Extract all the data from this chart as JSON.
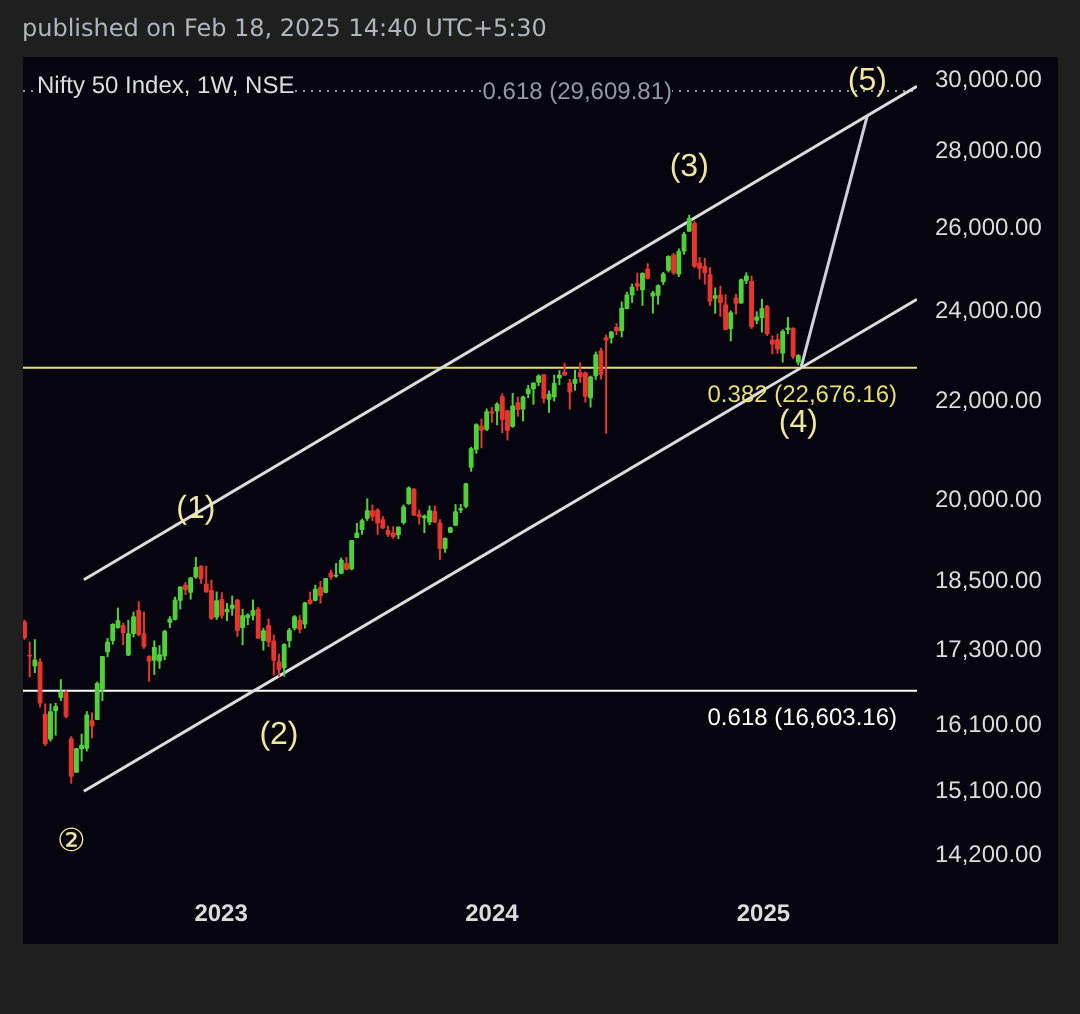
{
  "chart_data": {
    "type": "candlestick",
    "title": "Nifty 50 Index, 1W, NSE",
    "log": "y",
    "grid": false,
    "xlim": [
      "2022-04-09",
      "2025-07-27"
    ],
    "ylim": [
      13740,
      30600
    ],
    "xticks": [
      "2023",
      "2024",
      "2025"
    ],
    "yticks": [
      {
        "value": 30000,
        "label": "30,000.00"
      },
      {
        "value": 28000,
        "label": "28,000.00"
      },
      {
        "value": 26000,
        "label": "26,000.00"
      },
      {
        "value": 24000,
        "label": "24,000.00"
      },
      {
        "value": 22000,
        "label": "22,000.00"
      },
      {
        "value": 20000,
        "label": "20,000.00"
      },
      {
        "value": 18500,
        "label": "18,500.00"
      },
      {
        "value": 17300,
        "label": "17,300.00"
      },
      {
        "value": 16100,
        "label": "16,100.00"
      },
      {
        "value": 15100,
        "label": "15,100.00"
      },
      {
        "value": 14200,
        "label": "14,200.00"
      }
    ],
    "x": [
      "2022-04-11",
      "2022-04-18",
      "2022-04-25",
      "2022-05-02",
      "2022-05-09",
      "2022-05-16",
      "2022-05-23",
      "2022-05-30",
      "2022-06-06",
      "2022-06-13",
      "2022-06-20",
      "2022-06-27",
      "2022-07-04",
      "2022-07-11",
      "2022-07-18",
      "2022-07-25",
      "2022-08-01",
      "2022-08-08",
      "2022-08-15",
      "2022-08-22",
      "2022-08-29",
      "2022-09-05",
      "2022-09-12",
      "2022-09-19",
      "2022-09-26",
      "2022-10-03",
      "2022-10-10",
      "2022-10-17",
      "2022-10-24",
      "2022-10-31",
      "2022-11-07",
      "2022-11-14",
      "2022-11-21",
      "2022-11-28",
      "2022-12-05",
      "2022-12-12",
      "2022-12-19",
      "2022-12-26",
      "2023-01-02",
      "2023-01-09",
      "2023-01-16",
      "2023-01-23",
      "2023-01-30",
      "2023-02-06",
      "2023-02-13",
      "2023-02-20",
      "2023-02-27",
      "2023-03-06",
      "2023-03-13",
      "2023-03-20",
      "2023-03-27",
      "2023-04-03",
      "2023-04-10",
      "2023-04-17",
      "2023-04-24",
      "2023-05-01",
      "2023-05-08",
      "2023-05-15",
      "2023-05-22",
      "2023-05-29",
      "2023-06-05",
      "2023-06-12",
      "2023-06-19",
      "2023-06-26",
      "2023-07-03",
      "2023-07-10",
      "2023-07-17",
      "2023-07-24",
      "2023-07-31",
      "2023-08-07",
      "2023-08-14",
      "2023-08-21",
      "2023-08-28",
      "2023-09-04",
      "2023-09-11",
      "2023-09-18",
      "2023-09-25",
      "2023-10-02",
      "2023-10-09",
      "2023-10-16",
      "2023-10-23",
      "2023-10-30",
      "2023-11-06",
      "2023-11-13",
      "2023-11-20",
      "2023-11-27",
      "2023-12-04",
      "2023-12-11",
      "2023-12-18",
      "2023-12-25",
      "2024-01-01",
      "2024-01-08",
      "2024-01-15",
      "2024-01-22",
      "2024-01-29",
      "2024-02-05",
      "2024-02-12",
      "2024-02-19",
      "2024-02-26",
      "2024-03-04",
      "2024-03-11",
      "2024-03-18",
      "2024-03-25",
      "2024-04-01",
      "2024-04-08",
      "2024-04-15",
      "2024-04-22",
      "2024-04-29",
      "2024-05-06",
      "2024-05-13",
      "2024-05-20",
      "2024-05-27",
      "2024-06-03",
      "2024-06-10",
      "2024-06-17",
      "2024-06-24",
      "2024-07-01",
      "2024-07-08",
      "2024-07-15",
      "2024-07-22",
      "2024-07-29",
      "2024-08-05",
      "2024-08-12",
      "2024-08-19",
      "2024-08-26",
      "2024-09-02",
      "2024-09-09",
      "2024-09-16",
      "2024-09-23",
      "2024-09-30",
      "2024-10-07",
      "2024-10-14",
      "2024-10-21",
      "2024-10-28",
      "2024-11-04",
      "2024-11-11",
      "2024-11-18",
      "2024-11-25",
      "2024-12-02",
      "2024-12-09",
      "2024-12-16",
      "2024-12-23",
      "2024-12-30",
      "2025-01-06",
      "2025-01-13",
      "2025-01-20",
      "2025-01-27",
      "2025-02-03",
      "2025-02-10",
      "2025-02-17"
    ],
    "ohlc": [
      [
        17740,
        17780,
        17440,
        17480
      ],
      [
        17180,
        17410,
        16820,
        17170
      ],
      [
        17010,
        17450,
        16890,
        17100
      ],
      [
        17070,
        17130,
        16340,
        16410
      ],
      [
        16230,
        16400,
        15740,
        15780
      ],
      [
        15850,
        16400,
        15810,
        16270
      ],
      [
        16290,
        16410,
        15900,
        16350
      ],
      [
        16500,
        16790,
        16440,
        16580
      ],
      [
        16570,
        16610,
        16170,
        16200
      ],
      [
        15850,
        15890,
        15180,
        15290
      ],
      [
        15350,
        15710,
        15340,
        15700
      ],
      [
        15700,
        15930,
        15510,
        15750
      ],
      [
        15710,
        16280,
        15660,
        16220
      ],
      [
        16130,
        16260,
        15860,
        16050
      ],
      [
        16150,
        16750,
        16140,
        16720
      ],
      [
        16630,
        17170,
        16440,
        17160
      ],
      [
        17240,
        17470,
        17150,
        17400
      ],
      [
        17430,
        17720,
        17360,
        17700
      ],
      [
        17650,
        17990,
        17630,
        17760
      ],
      [
        17680,
        17730,
        17350,
        17560
      ],
      [
        17190,
        17780,
        17170,
        17540
      ],
      [
        17550,
        17920,
        17480,
        17830
      ],
      [
        17940,
        18100,
        17500,
        17530
      ],
      [
        17540,
        17920,
        17290,
        17330
      ],
      [
        17160,
        17180,
        16750,
        17090
      ],
      [
        17100,
        17430,
        16860,
        17310
      ],
      [
        17090,
        17350,
        16960,
        17190
      ],
      [
        17170,
        17610,
        17100,
        17580
      ],
      [
        17740,
        17840,
        17640,
        17790
      ],
      [
        17790,
        18180,
        17770,
        18120
      ],
      [
        18120,
        18360,
        17960,
        18350
      ],
      [
        18380,
        18440,
        18210,
        18310
      ],
      [
        18260,
        18530,
        18130,
        18510
      ],
      [
        18530,
        18890,
        18500,
        18700
      ],
      [
        18720,
        18740,
        18410,
        18500
      ],
      [
        18400,
        18730,
        18250,
        18270
      ],
      [
        18290,
        18480,
        17780,
        17810
      ],
      [
        17830,
        18270,
        17780,
        18110
      ],
      [
        18130,
        18260,
        17800,
        17860
      ],
      [
        17920,
        18070,
        17760,
        17960
      ],
      [
        17980,
        18200,
        17850,
        18030
      ],
      [
        18120,
        18140,
        17490,
        17600
      ],
      [
        17650,
        17970,
        17350,
        17850
      ],
      [
        17820,
        17890,
        17690,
        17860
      ],
      [
        17860,
        18130,
        17770,
        17940
      ],
      [
        17960,
        18000,
        17460,
        17470
      ],
      [
        17430,
        17640,
        17260,
        17590
      ],
      [
        17680,
        17800,
        17320,
        17410
      ],
      [
        17420,
        17530,
        16850,
        17100
      ],
      [
        17070,
        17210,
        16830,
        16950
      ],
      [
        16980,
        17380,
        16830,
        17360
      ],
      [
        17430,
        17640,
        17310,
        17600
      ],
      [
        17640,
        17860,
        17600,
        17830
      ],
      [
        17770,
        17860,
        17550,
        17620
      ],
      [
        17710,
        18090,
        17630,
        18070
      ],
      [
        18120,
        18270,
        18040,
        18070
      ],
      [
        18120,
        18390,
        18100,
        18310
      ],
      [
        18340,
        18460,
        18060,
        18200
      ],
      [
        18260,
        18510,
        18240,
        18500
      ],
      [
        18600,
        18660,
        18480,
        18530
      ],
      [
        18550,
        18780,
        18520,
        18560
      ],
      [
        18600,
        18880,
        18580,
        18830
      ],
      [
        18770,
        18890,
        18650,
        18670
      ],
      [
        18680,
        19200,
        18650,
        19190
      ],
      [
        19250,
        19520,
        19240,
        19330
      ],
      [
        19400,
        19600,
        19300,
        19560
      ],
      [
        19610,
        19990,
        19560,
        19750
      ],
      [
        19750,
        19870,
        19560,
        19650
      ],
      [
        19760,
        19800,
        19300,
        19520
      ],
      [
        19580,
        19650,
        19410,
        19430
      ],
      [
        19380,
        19470,
        19260,
        19310
      ],
      [
        19330,
        19460,
        19230,
        19270
      ],
      [
        19300,
        19460,
        19220,
        19440
      ],
      [
        19530,
        19870,
        19490,
        19820
      ],
      [
        19890,
        20220,
        19870,
        20190
      ],
      [
        20160,
        20190,
        19660,
        19670
      ],
      [
        19680,
        19770,
        19490,
        19640
      ],
      [
        19620,
        19680,
        19330,
        19650
      ],
      [
        19540,
        19850,
        19480,
        19750
      ],
      [
        19740,
        19850,
        19520,
        19540
      ],
      [
        19520,
        19590,
        18840,
        19050
      ],
      [
        19050,
        19250,
        18970,
        19230
      ],
      [
        19350,
        19450,
        19330,
        19430
      ],
      [
        19480,
        19880,
        19470,
        19730
      ],
      [
        19770,
        19880,
        19710,
        19790
      ],
      [
        19840,
        20290,
        19800,
        20270
      ],
      [
        20600,
        21010,
        20510,
        20970
      ],
      [
        20960,
        21490,
        20870,
        21460
      ],
      [
        21430,
        21590,
        20980,
        21350
      ],
      [
        21370,
        21800,
        21330,
        21730
      ],
      [
        21730,
        21830,
        21500,
        21710
      ],
      [
        21750,
        21930,
        21450,
        21890
      ],
      [
        22050,
        22120,
        21290,
        21570
      ],
      [
        21750,
        21770,
        21140,
        21350
      ],
      [
        21430,
        22130,
        21400,
        21850
      ],
      [
        21920,
        22050,
        21630,
        21780
      ],
      [
        21790,
        22070,
        21530,
        22040
      ],
      [
        22120,
        22300,
        22020,
        22210
      ],
      [
        22220,
        22350,
        21880,
        22340
      ],
      [
        22360,
        22530,
        22280,
        22490
      ],
      [
        22520,
        22530,
        21910,
        22020
      ],
      [
        22000,
        22180,
        21710,
        22100
      ],
      [
        22050,
        22520,
        21950,
        22330
      ],
      [
        22460,
        22620,
        22300,
        22510
      ],
      [
        22580,
        22780,
        22500,
        22520
      ],
      [
        22340,
        22430,
        21780,
        22150
      ],
      [
        22340,
        22630,
        22180,
        22420
      ],
      [
        22570,
        22790,
        22350,
        22480
      ],
      [
        22560,
        22590,
        21930,
        22060
      ],
      [
        22030,
        22500,
        21820,
        22470
      ],
      [
        22500,
        23030,
        22410,
        22960
      ],
      [
        23040,
        23110,
        22420,
        22530
      ],
      [
        23340,
        23410,
        21280,
        23290
      ],
      [
        23340,
        23490,
        23210,
        23470
      ],
      [
        23570,
        23670,
        23400,
        23500
      ],
      [
        23500,
        24170,
        23350,
        24010
      ],
      [
        24010,
        24400,
        23990,
        24320
      ],
      [
        24330,
        24590,
        24140,
        24500
      ],
      [
        24590,
        24850,
        24420,
        24530
      ],
      [
        24450,
        24860,
        24070,
        24830
      ],
      [
        24940,
        25080,
        24690,
        24720
      ],
      [
        24300,
        24420,
        23890,
        24370
      ],
      [
        24320,
        24570,
        24100,
        24540
      ],
      [
        24640,
        24870,
        24560,
        24820
      ],
      [
        24910,
        25270,
        24860,
        25240
      ],
      [
        25280,
        25330,
        24800,
        24850
      ],
      [
        24820,
        25440,
        24750,
        25360
      ],
      [
        25380,
        25850,
        25290,
        25790
      ],
      [
        25870,
        26280,
        25850,
        26180
      ],
      [
        26060,
        26130,
        24970,
        25010
      ],
      [
        25080,
        25230,
        24690,
        24960
      ],
      [
        25000,
        25210,
        24570,
        24850
      ],
      [
        24800,
        24980,
        24070,
        24180
      ],
      [
        24250,
        24500,
        23890,
        24300
      ],
      [
        24320,
        24540,
        23820,
        24150
      ],
      [
        24090,
        24340,
        23510,
        23530
      ],
      [
        23550,
        23960,
        23260,
        23910
      ],
      [
        24250,
        24350,
        23870,
        24130
      ],
      [
        24140,
        24710,
        24120,
        24680
      ],
      [
        24670,
        24860,
        24580,
        24770
      ],
      [
        24640,
        24780,
        23540,
        23590
      ],
      [
        23740,
        23940,
        23650,
        23810
      ],
      [
        23800,
        24230,
        23460,
        24000
      ],
      [
        24050,
        24090,
        23380,
        23430
      ],
      [
        23280,
        23390,
        22970,
        23200
      ],
      [
        23290,
        23430,
        22980,
        23090
      ],
      [
        23000,
        23530,
        22790,
        23480
      ],
      [
        23530,
        23810,
        23420,
        23560
      ],
      [
        23550,
        23570,
        22870,
        22930
      ],
      [
        22800,
        22970,
        22730,
        22940
      ]
    ],
    "colors": [
      "#e8352e",
      "#e8352e",
      "#4fd13a",
      "#e8352e",
      "#e8352e",
      "#4fd13a",
      "#4fd13a",
      "#4fd13a",
      "#e8352e",
      "#e8352e",
      "#4fd13a",
      "#4fd13a",
      "#4fd13a",
      "#e8352e",
      "#4fd13a",
      "#4fd13a",
      "#4fd13a",
      "#4fd13a",
      "#4fd13a",
      "#e8352e",
      "#4fd13a",
      "#4fd13a",
      "#e8352e",
      "#e8352e",
      "#e8352e",
      "#4fd13a",
      "#4fd13a",
      "#4fd13a",
      "#4fd13a",
      "#4fd13a",
      "#4fd13a",
      "#e8352e",
      "#4fd13a",
      "#4fd13a",
      "#e8352e",
      "#e8352e",
      "#e8352e",
      "#4fd13a",
      "#e8352e",
      "#4fd13a",
      "#4fd13a",
      "#e8352e",
      "#4fd13a",
      "#4fd13a",
      "#4fd13a",
      "#e8352e",
      "#4fd13a",
      "#e8352e",
      "#e8352e",
      "#e8352e",
      "#4fd13a",
      "#4fd13a",
      "#4fd13a",
      "#e8352e",
      "#4fd13a",
      "#e8352e",
      "#4fd13a",
      "#e8352e",
      "#4fd13a",
      "#e8352e",
      "#4fd13a",
      "#4fd13a",
      "#e8352e",
      "#4fd13a",
      "#4fd13a",
      "#4fd13a",
      "#4fd13a",
      "#e8352e",
      "#e8352e",
      "#e8352e",
      "#e8352e",
      "#e8352e",
      "#4fd13a",
      "#4fd13a",
      "#4fd13a",
      "#e8352e",
      "#e8352e",
      "#4fd13a",
      "#4fd13a",
      "#e8352e",
      "#e8352e",
      "#4fd13a",
      "#4fd13a",
      "#4fd13a",
      "#4fd13a",
      "#4fd13a",
      "#4fd13a",
      "#4fd13a",
      "#e8352e",
      "#4fd13a",
      "#e8352e",
      "#4fd13a",
      "#e8352e",
      "#e8352e",
      "#4fd13a",
      "#e8352e",
      "#4fd13a",
      "#4fd13a",
      "#4fd13a",
      "#4fd13a",
      "#e8352e",
      "#4fd13a",
      "#4fd13a",
      "#4fd13a",
      "#e8352e",
      "#e8352e",
      "#4fd13a",
      "#e8352e",
      "#e8352e",
      "#4fd13a",
      "#4fd13a",
      "#e8352e",
      "#e8352e",
      "#4fd13a",
      "#e8352e",
      "#4fd13a",
      "#4fd13a",
      "#4fd13a",
      "#e8352e",
      "#4fd13a",
      "#e8352e",
      "#4fd13a",
      "#4fd13a",
      "#4fd13a",
      "#4fd13a",
      "#e8352e",
      "#4fd13a",
      "#4fd13a",
      "#4fd13a",
      "#e8352e",
      "#e8352e",
      "#e8352e",
      "#e8352e",
      "#4fd13a",
      "#e8352e",
      "#e8352e",
      "#4fd13a",
      "#e8352e",
      "#4fd13a",
      "#4fd13a",
      "#e8352e",
      "#4fd13a",
      "#4fd13a",
      "#e8352e",
      "#e8352e",
      "#e8352e",
      "#4fd13a",
      "#4fd13a",
      "#e8352e",
      "#4fd13a"
    ],
    "series": [
      {
        "type": "line",
        "color": "#dcdcdc",
        "x": [
          "2022-06-30",
          "2025-07-27"
        ],
        "values": [
          18480,
          29750
        ]
      },
      {
        "type": "line",
        "color": "#dcdcdc",
        "x": [
          "2022-06-30",
          "2025-07-27"
        ],
        "values": [
          15070,
          24220
        ]
      },
      {
        "type": "line",
        "color": "#d0d0d8",
        "x": [
          "2025-02-21",
          "2025-05-21"
        ],
        "values": [
          22700,
          28920
        ]
      }
    ],
    "ref_lines": [
      {
        "axis": "y",
        "value": 29609.81,
        "label": "0.618 (29,609.81)",
        "color": "#9598a1",
        "line_style": "dotted"
      },
      {
        "axis": "y",
        "value": 22676.16,
        "label": "0.382 (22,676.16)",
        "color": "#e6df72"
      },
      {
        "axis": "y",
        "value": 16603.16,
        "label": "0.618 (16,603.16)",
        "color": "#ffffff"
      }
    ],
    "annotations": [
      "published on Feb 18, 2025 14:40 UTC+5:30",
      {
        "text": "②",
        "x": "2022-06-13",
        "y": 15180
      },
      {
        "text": "(1)",
        "x": "2022-11-28",
        "y": 18890
      },
      {
        "text": "(2)",
        "x": "2023-03-20",
        "y": 16830
      },
      {
        "text": "(3)",
        "x": "2024-09-23",
        "y": 26280
      },
      {
        "text": "(4)",
        "x": "2025-02-17",
        "y": 22730
      },
      {
        "text": "(5)",
        "x": "2025-05-21",
        "y": 28920
      }
    ]
  }
}
